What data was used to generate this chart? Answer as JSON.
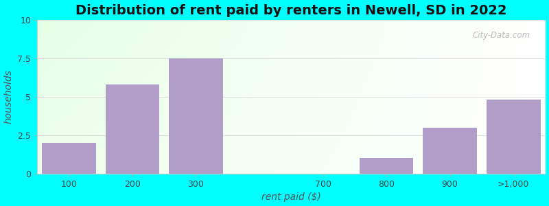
{
  "categories": [
    "100",
    "200",
    "300",
    "700",
    "800",
    "900",
    ">1,000"
  ],
  "values": [
    2.0,
    5.8,
    7.5,
    0.0,
    1.0,
    3.0,
    4.8
  ],
  "bar_color": "#b09ec9",
  "title": "Distribution of rent paid by renters in Newell, SD in 2022",
  "xlabel": "rent paid ($)",
  "ylabel": "households",
  "ylim": [
    0,
    10
  ],
  "yticks": [
    0,
    2.5,
    5,
    7.5,
    10
  ],
  "title_fontsize": 14,
  "axis_label_fontsize": 10,
  "tick_fontsize": 9,
  "bg_color": "#00ffff",
  "watermark_text": "City-Data.com",
  "grid_color": "#dddddd",
  "bar_positions": [
    0,
    1,
    2,
    4,
    5,
    6,
    7
  ],
  "xtick_positions": [
    0,
    1,
    2,
    4,
    5,
    6,
    7
  ],
  "xlim": [
    -0.5,
    7.5
  ]
}
